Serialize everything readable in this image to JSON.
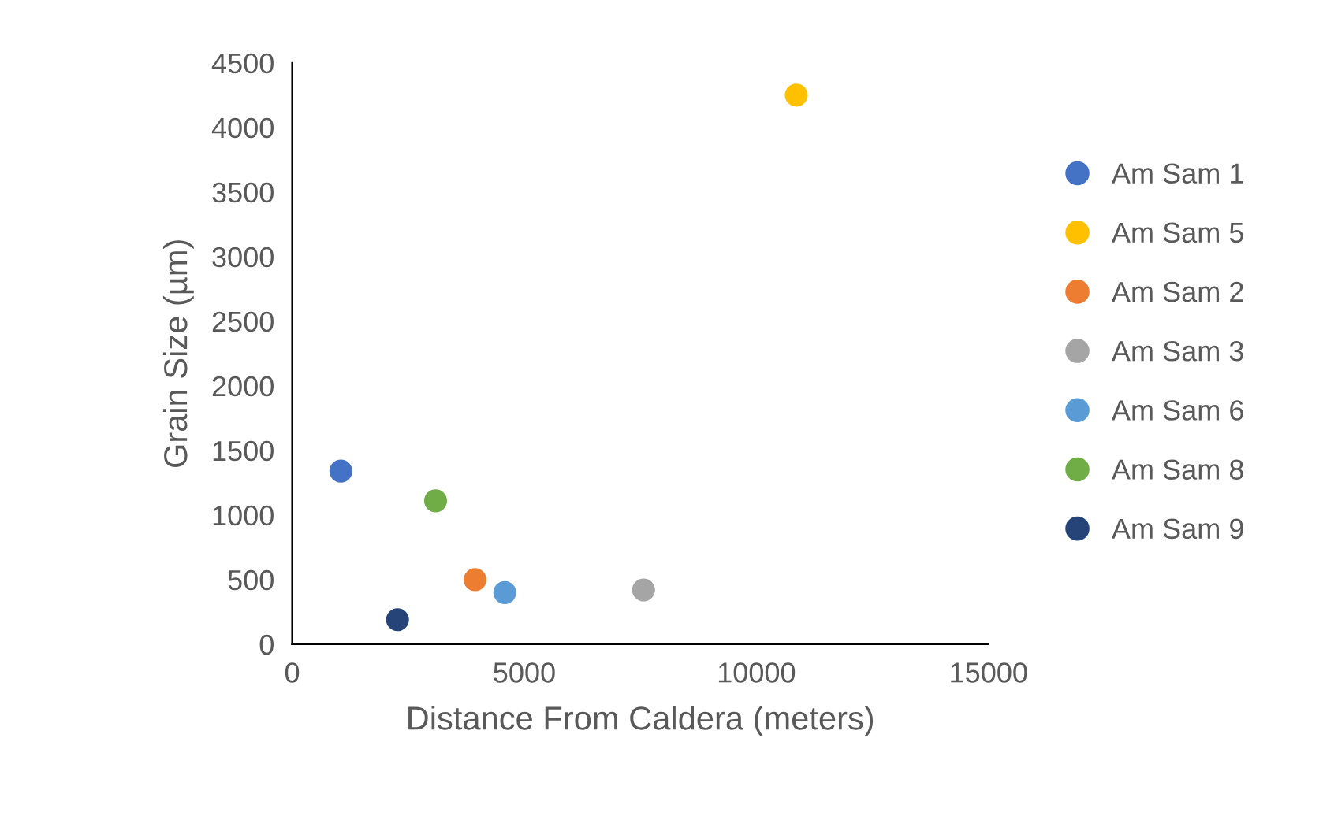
{
  "chart_data": {
    "type": "scatter",
    "xlabel": "Distance From Caldera (meters)",
    "ylabel": "Grain Size (µm)",
    "xlim": [
      0,
      15000
    ],
    "xticks": [
      0,
      5000,
      10000,
      15000
    ],
    "ylim": [
      0,
      4500
    ],
    "yticks": [
      0,
      500,
      1000,
      1500,
      2000,
      2500,
      3000,
      3500,
      4000,
      4500
    ],
    "grid": false,
    "legend": "right",
    "marker": "circle",
    "series": [
      {
        "name": "Am Sam 1",
        "color": "#4472c4",
        "x": [
          1050
        ],
        "values": [
          1340
        ]
      },
      {
        "name": "Am Sam 5",
        "color": "#ffc000",
        "x": [
          10860
        ],
        "values": [
          4250
        ]
      },
      {
        "name": "Am Sam 2",
        "color": "#ed7d31",
        "x": [
          3940
        ],
        "values": [
          500
        ]
      },
      {
        "name": "Am Sam 3",
        "color": "#a5a5a5",
        "x": [
          7570
        ],
        "values": [
          420
        ]
      },
      {
        "name": "Am Sam 6",
        "color": "#5b9bd5",
        "x": [
          4580
        ],
        "values": [
          400
        ]
      },
      {
        "name": "Am Sam 8",
        "color": "#70ad47",
        "x": [
          3090
        ],
        "values": [
          1110
        ]
      },
      {
        "name": "Am Sam 9",
        "color": "#264478",
        "x": [
          2270
        ],
        "values": [
          190
        ]
      }
    ]
  }
}
